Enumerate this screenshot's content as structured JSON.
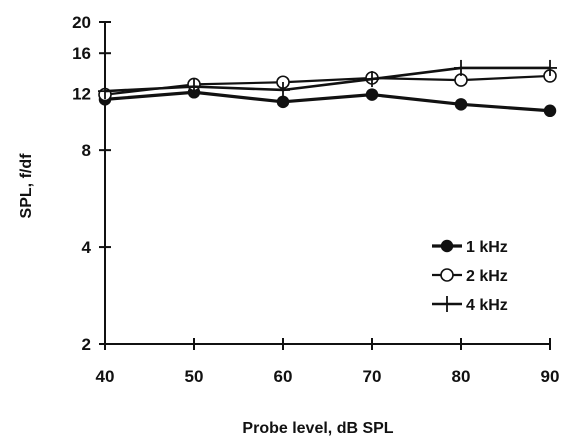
{
  "chart_data": {
    "type": "line",
    "xlabel": "Probe level, dB SPL",
    "ylabel": "SPL, f/df",
    "x": [
      40,
      50,
      60,
      70,
      80,
      90
    ],
    "xlim": [
      40,
      90
    ],
    "xticks": [
      "40",
      "50",
      "60",
      "70",
      "80",
      "90"
    ],
    "yscale": "log",
    "ylim": [
      2,
      20
    ],
    "yticks": [
      "2",
      "4",
      "8",
      "12",
      "16",
      "20"
    ],
    "yticks_values": [
      2,
      4,
      8,
      12,
      16,
      20
    ],
    "grid": false,
    "legend_position": "bottom-right",
    "series": [
      {
        "name": "1 kHz",
        "marker": "filled-circle",
        "values": [
          11.5,
          12.1,
          11.3,
          11.9,
          11.1,
          10.6
        ]
      },
      {
        "name": "2 kHz",
        "marker": "open-circle",
        "values": [
          11.9,
          12.8,
          13.0,
          13.4,
          13.2,
          13.6
        ]
      },
      {
        "name": "4 kHz",
        "marker": "plus",
        "values": [
          12.2,
          12.6,
          12.3,
          13.3,
          14.4,
          14.4
        ]
      }
    ],
    "colors": {
      "line": "#111111",
      "background": "#ffffff"
    }
  }
}
